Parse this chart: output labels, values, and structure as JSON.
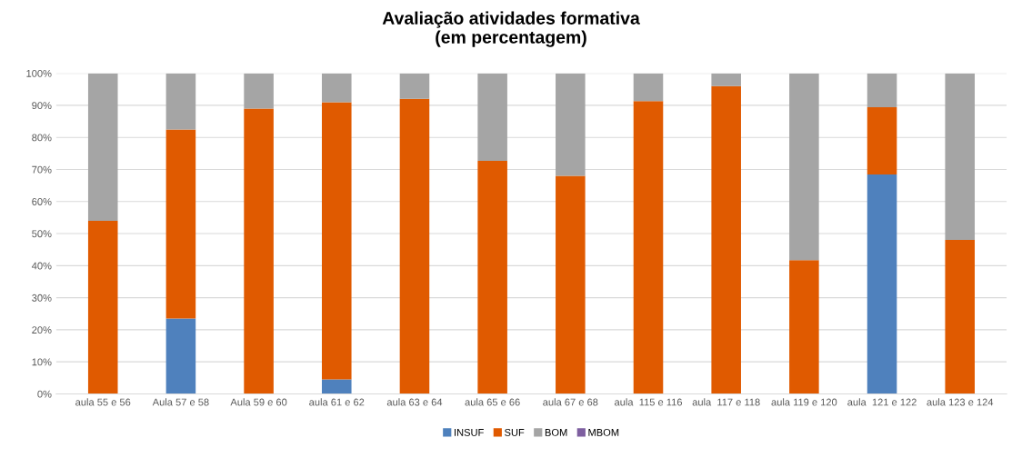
{
  "chart_data": {
    "type": "bar",
    "title": "Avaliação atividades formativa\n(em percentagem)",
    "categories": [
      "aula 55 e 56",
      "Aula 57 e 58",
      "Aula 59 e 60",
      "aula 61 e 62",
      "aula 63 e 64",
      "aula 65 e 66",
      "aula 67 e 68",
      "aula  115 e 116",
      "aula  117 e 118",
      "aula 119 e 120",
      "aula  121 e 122",
      "aula 123 e 124"
    ],
    "stacked": true,
    "series": [
      {
        "name": "INSUF",
        "color": "#4f81bd",
        "values": [
          0,
          23.5,
          0,
          4.5,
          0,
          0,
          0,
          0,
          0,
          0,
          68.4,
          0
        ]
      },
      {
        "name": "SUF",
        "color": "#e05a00",
        "values": [
          54,
          59,
          89,
          86.5,
          92,
          72.7,
          68,
          91.3,
          96,
          41.7,
          21,
          48
        ]
      },
      {
        "name": "BOM",
        "color": "#a5a5a5",
        "values": [
          46,
          17.5,
          11,
          9,
          8,
          27.3,
          32,
          8.7,
          4,
          58.3,
          10.6,
          52
        ]
      },
      {
        "name": "MBOM",
        "color": "#7e5fa0",
        "values": [
          0,
          0,
          0,
          0,
          0,
          0,
          0,
          0,
          0,
          0,
          0,
          0
        ]
      }
    ],
    "ylim": [
      0,
      100
    ],
    "yticks": [
      {
        "value": 0,
        "label": "0%"
      },
      {
        "value": 10,
        "label": "10%"
      },
      {
        "value": 20,
        "label": "20%"
      },
      {
        "value": 30,
        "label": "30%"
      },
      {
        "value": 40,
        "label": "40%"
      },
      {
        "value": 50,
        "label": "50%"
      },
      {
        "value": 60,
        "label": "60%"
      },
      {
        "value": 70,
        "label": "70%"
      },
      {
        "value": 80,
        "label": "80%"
      },
      {
        "value": 90,
        "label": "90%"
      },
      {
        "value": 100,
        "label": "100%"
      }
    ],
    "grid": "y",
    "legend": "bottom"
  }
}
